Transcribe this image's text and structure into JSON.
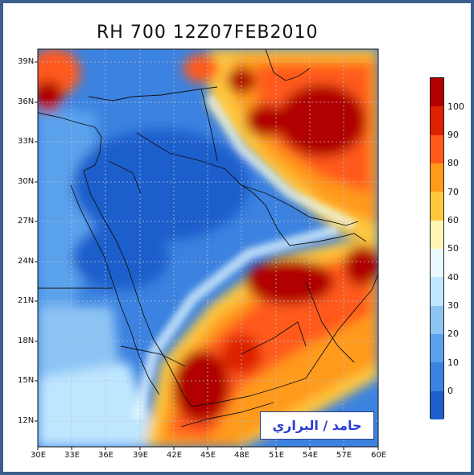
{
  "title": "RH 700  12Z07FEB2010",
  "credit": "حامد / البراري",
  "latitude_labels": [
    "39N",
    "36N",
    "33N",
    "30N",
    "27N",
    "24N",
    "21N",
    "18N",
    "15N",
    "12N"
  ],
  "longitude_labels": [
    "30E",
    "33E",
    "36E",
    "39E",
    "42E",
    "45E",
    "48E",
    "51E",
    "54E",
    "57E",
    "60E"
  ],
  "colorbar": {
    "labels": [
      "100",
      "90",
      "80",
      "70",
      "60",
      "50",
      "40",
      "30",
      "20",
      "10",
      "0"
    ],
    "colors": [
      "#b00000",
      "#dd2000",
      "#ff5a1a",
      "#ff9a1a",
      "#ffc83c",
      "#fff6b4",
      "#e8faff",
      "#bfe6ff",
      "#8cc4f4",
      "#5aa2ec",
      "#3c82e0",
      "#1e5fcc"
    ]
  },
  "map": {
    "projection": "lat-lon",
    "lon_range": [
      "30E",
      "60E"
    ],
    "lat_range": [
      "10N",
      "40N"
    ],
    "variable": "RH 700",
    "gridlines": "dotted"
  }
}
